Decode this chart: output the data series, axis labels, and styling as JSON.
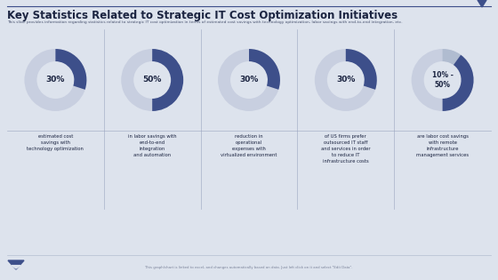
{
  "title": "Key Statistics Related to Strategic IT Cost Optimization Initiatives",
  "subtitle": "This slide provides information regarding statistics related to strategic IT cost optimization in terms of estimated cost savings with technology optimization, labor savings with end-to-end integration, etc.",
  "footer": "This graph/chart is linked to excel, and changes automatically based on data. Just left click on it and select \"Edit Data\".",
  "background_color": "#dde3ed",
  "title_color": "#1a2340",
  "subtitle_color": "#4a5470",
  "text_color": "#1a2340",
  "donut_filled_color": "#3d4f8a",
  "donut_empty_color": "#c8cfe0",
  "donut_light_color": "#b0bcd0",
  "items": [
    {
      "label": "30%",
      "value": 30,
      "description": "estimated cost\nsavings with\ntechnology optimization"
    },
    {
      "label": "50%",
      "value": 50,
      "description": "in labor savings with\nend-to-end\nintegration\nand automation"
    },
    {
      "label": "30%",
      "value": 30,
      "description": "reduction in\noperational\nexpenses with\nvirtualized environment"
    },
    {
      "label": "30%",
      "value": 30,
      "description": "of US firms prefer\noutsourced IT staff\nand services in order\nto reduce IT\ninfrastructure costs"
    },
    {
      "label": "10% -\n50%",
      "value_min": 10,
      "value_max": 50,
      "description": "are labor cost savings\nwith remote\ninfrastructure\nmanagement services"
    }
  ],
  "divider_color": "#9aa5bf",
  "accent_color": "#3d4f8a"
}
